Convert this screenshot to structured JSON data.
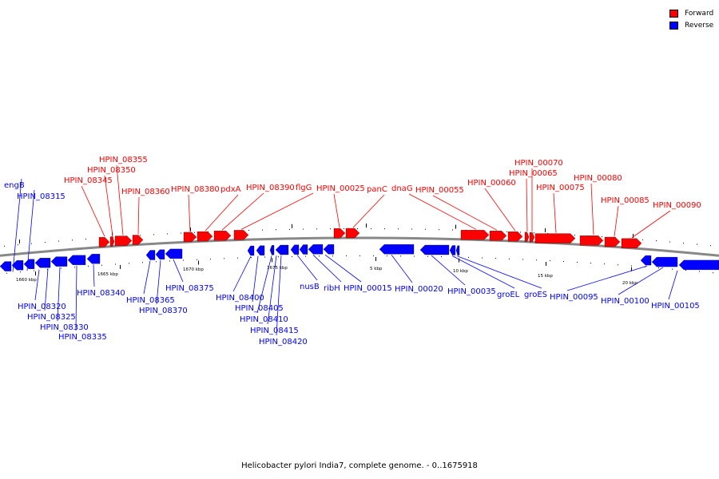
{
  "legend": {
    "forward_label": "Forward",
    "reverse_label": "Reverse",
    "forward_color": "#ff0000",
    "reverse_color": "#0000ff"
  },
  "caption": "Helicobacter pylori India7, complete genome. - 0..1675918",
  "colors": {
    "forward": "#ff0000",
    "reverse": "#0000ff",
    "backbone": "#888888"
  },
  "scale_labels": [
    "1660 kbp",
    "1665 kbp",
    "1670 kbp",
    "1675 kbp",
    "5 kbp",
    "10 kbp",
    "15 kbp",
    "20 kbp"
  ],
  "genes": {
    "forward": [
      "HPIN_08345",
      "HPIN_08350",
      "HPIN_08355",
      "HPIN_08360",
      "HPIN_08380",
      "pdxA",
      "HPIN_08390",
      "flgG",
      "HPIN_00025",
      "panC",
      "dnaG",
      "HPIN_00055",
      "HPIN_00060",
      "HPIN_00065",
      "HPIN_00070",
      "HPIN_00075",
      "HPIN_00080",
      "HPIN_00085",
      "HPIN_00090"
    ],
    "reverse": [
      "engB",
      "HPIN_08315",
      "HPIN_08320",
      "HPIN_08325",
      "HPIN_08330",
      "HPIN_08335",
      "HPIN_08340",
      "HPIN_08365",
      "HPIN_08370",
      "HPIN_08375",
      "HPIN_08400",
      "HPIN_08405",
      "HPIN_08410",
      "HPIN_08415",
      "HPIN_08420",
      "nusB",
      "ribH",
      "HPIN_00015",
      "HPIN_00020",
      "HPIN_00035",
      "groEL",
      "groES",
      "HPIN_00095",
      "HPIN_00100",
      "HPIN_00105"
    ]
  }
}
